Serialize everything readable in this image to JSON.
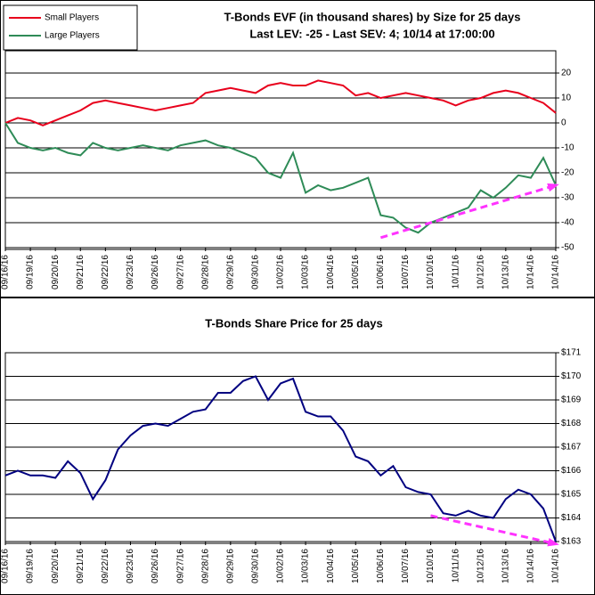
{
  "chart_data": [
    {
      "type": "line",
      "title": "T-Bonds EVF (in thousand shares) by Size for 25 days",
      "subtitle": "Last LEV: -25 - Last SEV: 4; 10/14 at 17:00:00",
      "categories": [
        "09/16/16",
        null,
        "09/19/16",
        null,
        "09/20/16",
        null,
        "09/21/16",
        null,
        "09/22/16",
        null,
        "09/23/16",
        null,
        "09/26/16",
        null,
        "09/27/16",
        null,
        "09/28/16",
        null,
        "09/29/16",
        null,
        "09/30/16",
        null,
        "10/02/16",
        null,
        "10/03/16",
        null,
        "10/04/16",
        null,
        "10/05/16",
        null,
        "10/06/16",
        null,
        "10/07/16",
        null,
        "10/10/16",
        null,
        "10/11/16",
        null,
        "10/12/16",
        null,
        "10/13/16",
        null,
        "10/14/16",
        null,
        "10/14/16"
      ],
      "series": [
        {
          "name": "Small Players",
          "color": "#e8001c",
          "values": [
            0,
            2,
            1,
            -1,
            1,
            3,
            5,
            8,
            9,
            8,
            7,
            6,
            5,
            6,
            7,
            8,
            12,
            13,
            14,
            13,
            12,
            15,
            16,
            15,
            15,
            17,
            16,
            15,
            11,
            12,
            10,
            11,
            12,
            11,
            10,
            9,
            7,
            9,
            10,
            12,
            13,
            12,
            10,
            8,
            4
          ]
        },
        {
          "name": "Large Players",
          "color": "#2e8b57",
          "values": [
            0,
            -8,
            -10,
            -11,
            -10,
            -12,
            -13,
            -8,
            -10,
            -11,
            -10,
            -9,
            -10,
            -11,
            -9,
            -8,
            -7,
            -9,
            -10,
            -12,
            -14,
            -20,
            -22,
            -12,
            -28,
            -25,
            -27,
            -26,
            -24,
            -22,
            -37,
            -38,
            -42,
            -44,
            -40,
            -38,
            -36,
            -34,
            -27,
            -30,
            -26,
            -21,
            -22,
            -14,
            -25
          ]
        }
      ],
      "trendlines": [
        {
          "color": "#ff33ff",
          "x": [
            30,
            44
          ],
          "values": [
            -46,
            -25
          ]
        }
      ],
      "ylim": [
        -50,
        20
      ],
      "yticks": [
        -50,
        -40,
        -30,
        -20,
        -10,
        0,
        10,
        20
      ],
      "grid": true,
      "legend": "top-left"
    },
    {
      "type": "line",
      "title": "T-Bonds Share Price for 25 days",
      "categories": [
        "09/16/16",
        null,
        "09/19/16",
        null,
        "09/20/16",
        null,
        "09/21/16",
        null,
        "09/22/16",
        null,
        "09/23/16",
        null,
        "09/26/16",
        null,
        "09/27/16",
        null,
        "09/28/16",
        null,
        "09/29/16",
        null,
        "09/30/16",
        null,
        "10/02/16",
        null,
        "10/03/16",
        null,
        "10/04/16",
        null,
        "10/05/16",
        null,
        "10/06/16",
        null,
        "10/07/16",
        null,
        "10/10/16",
        null,
        "10/11/16",
        null,
        "10/12/16",
        null,
        "10/13/16",
        null,
        "10/14/16",
        null,
        "10/14/16"
      ],
      "series": [
        {
          "color": "#000080",
          "values": [
            165.8,
            166.0,
            165.8,
            165.8,
            165.7,
            166.4,
            165.9,
            164.8,
            165.6,
            166.9,
            167.5,
            167.9,
            168.0,
            167.9,
            168.2,
            168.5,
            168.6,
            169.3,
            169.3,
            169.8,
            170.0,
            169.0,
            169.7,
            169.9,
            168.5,
            168.3,
            168.3,
            167.7,
            166.6,
            166.4,
            165.8,
            166.2,
            165.3,
            165.1,
            165.0,
            164.2,
            164.1,
            164.3,
            164.1,
            164.0,
            164.8,
            165.2,
            165.0,
            164.4,
            163.0
          ]
        }
      ],
      "trendlines": [
        {
          "color": "#ff33ff",
          "x": [
            34,
            44
          ],
          "values": [
            164.1,
            162.9
          ]
        }
      ],
      "ylim": [
        163,
        171
      ],
      "yticks": [
        {
          "value": 163,
          "label": "$163"
        },
        {
          "value": 164,
          "label": "$164"
        },
        {
          "value": 165,
          "label": "$165"
        },
        {
          "value": 166,
          "label": "$166"
        },
        {
          "value": 167,
          "label": "$167"
        },
        {
          "value": 168,
          "label": "$168"
        },
        {
          "value": 169,
          "label": "$169"
        },
        {
          "value": 170,
          "label": "$170"
        },
        {
          "value": 171,
          "label": "$171"
        }
      ],
      "grid": true
    }
  ]
}
